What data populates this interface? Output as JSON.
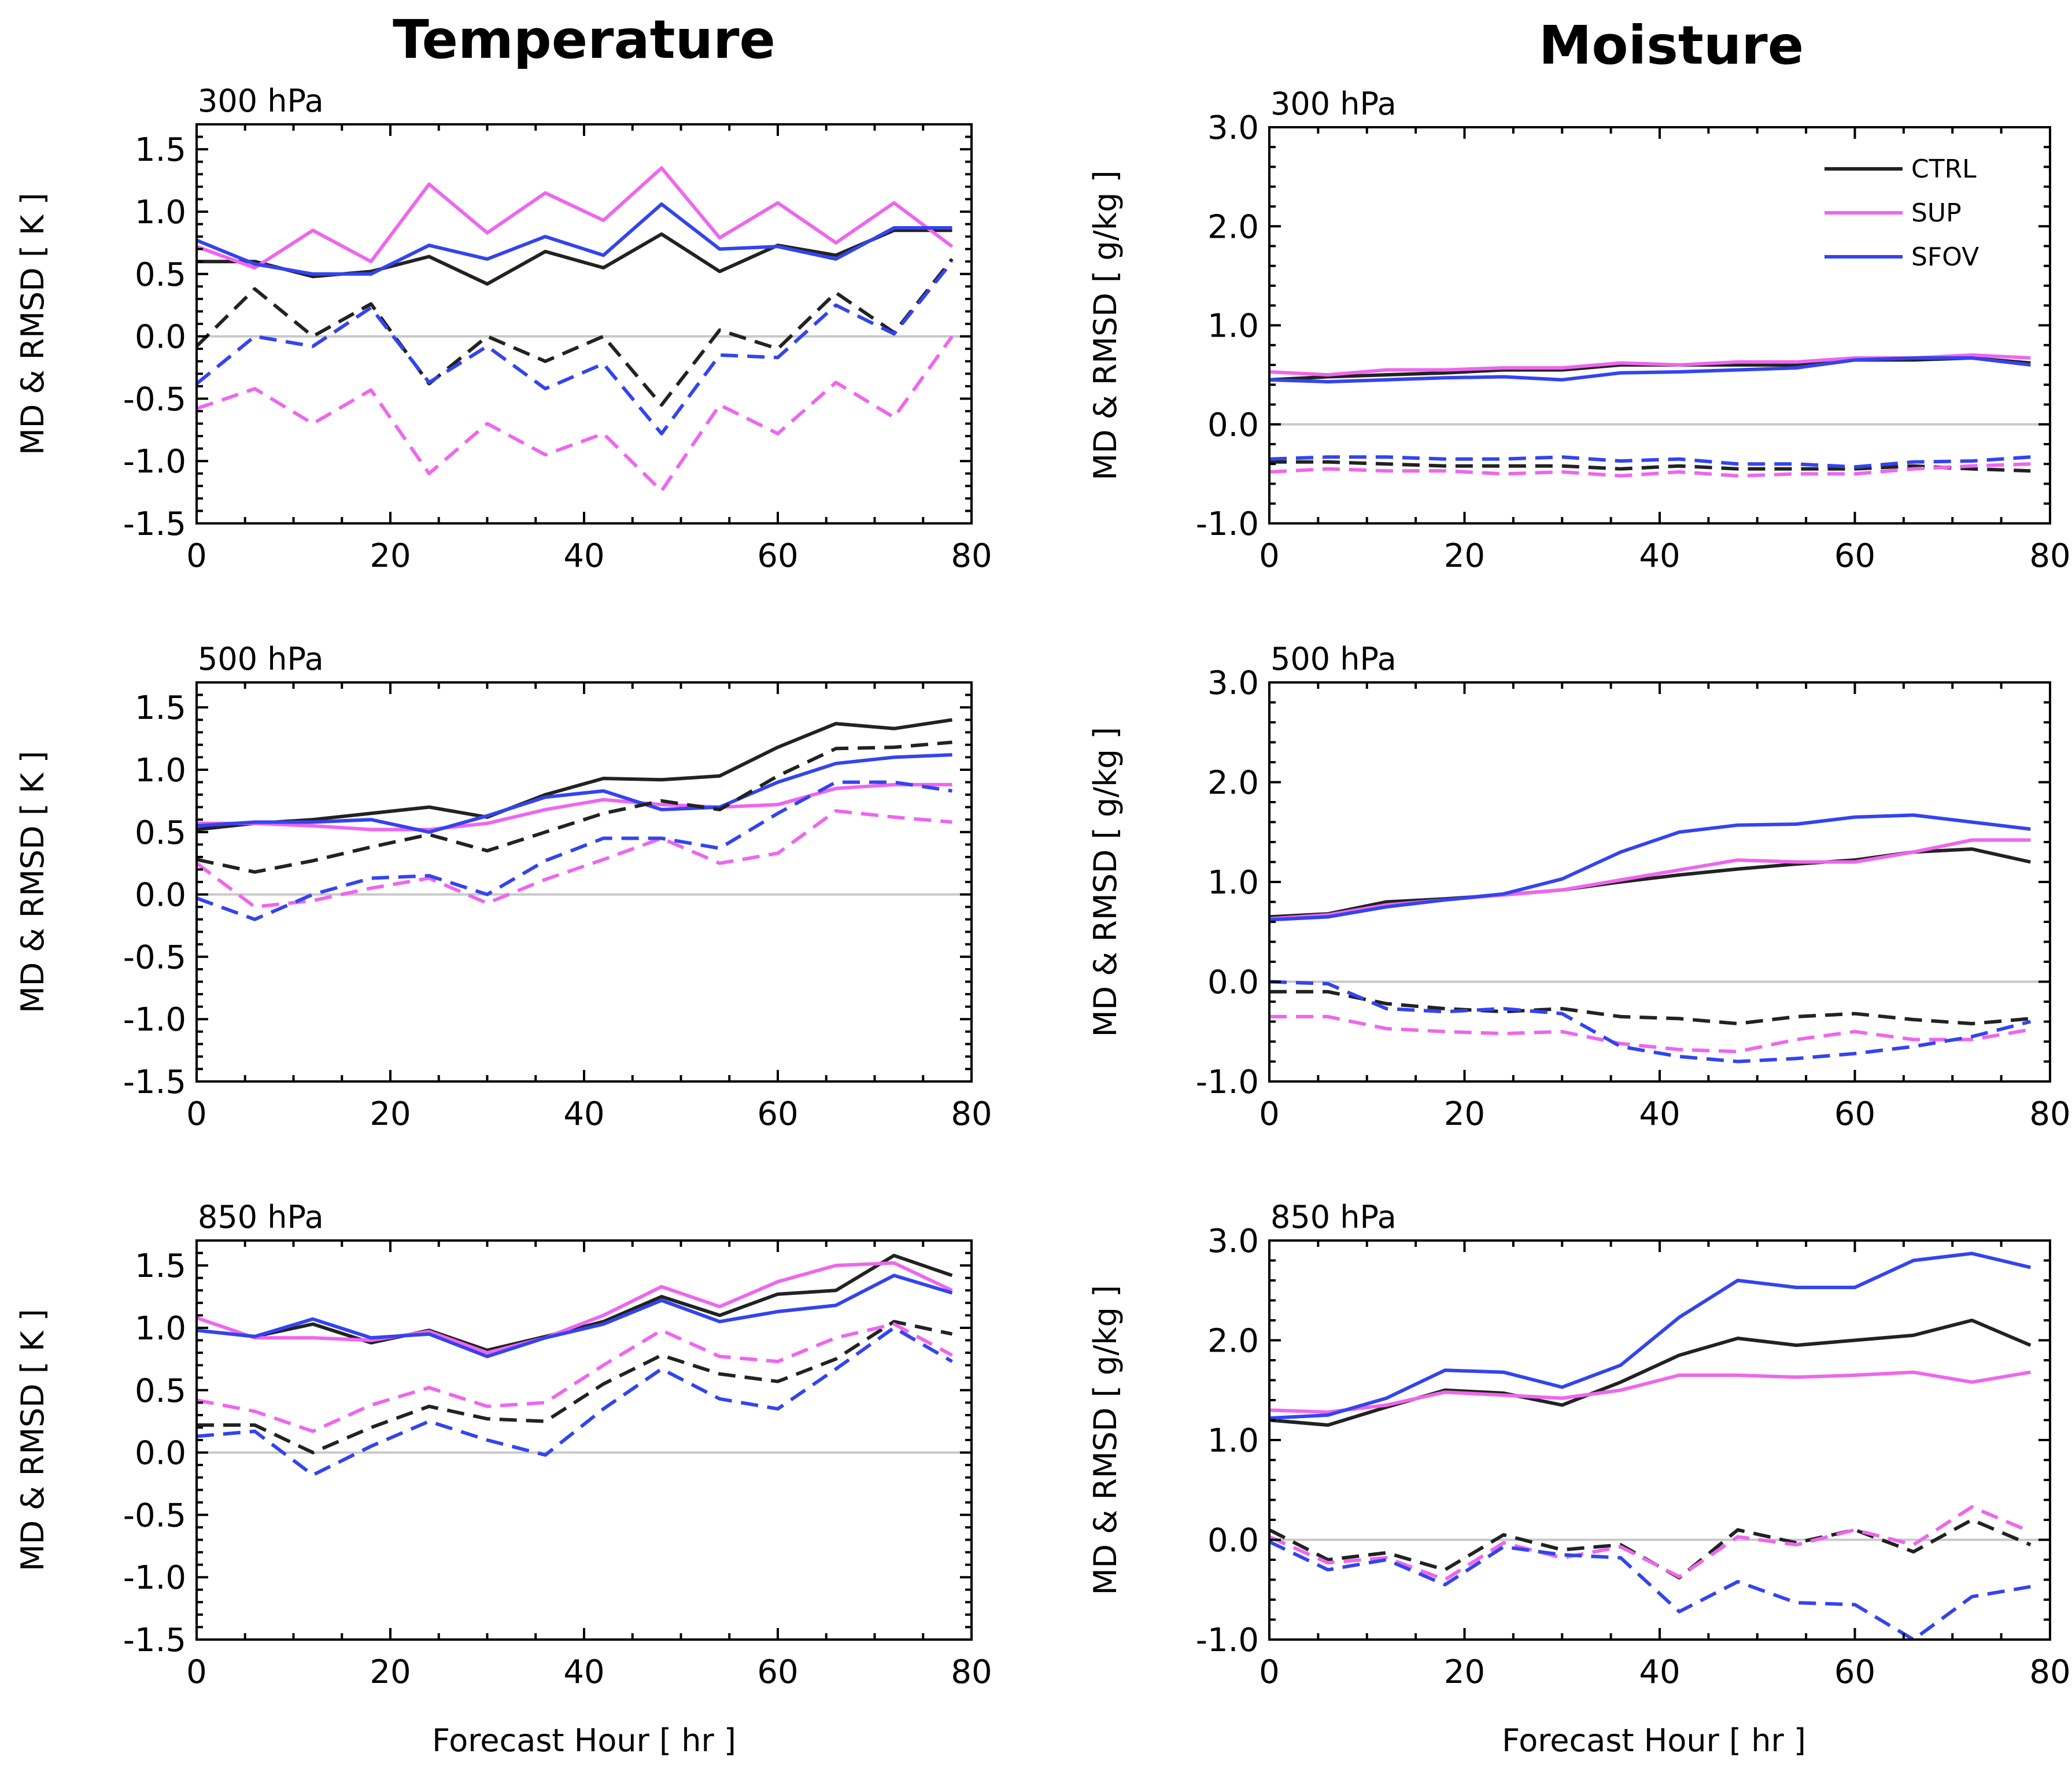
{
  "figure": {
    "columns": [
      "Temperature",
      "Moisture"
    ],
    "xlabel": "Forecast Hour [ hr ]"
  },
  "legend": [
    {
      "name": "CTRL",
      "color": "#222222"
    },
    {
      "name": "SUP",
      "color": "#ee66ee"
    },
    {
      "name": "SFOV",
      "color": "#3344ee"
    }
  ],
  "chart_data": [
    {
      "type": "line",
      "column": "Temperature",
      "level": "300 hPa",
      "ylabel": "MD & RMSD [ K ]",
      "xlim": [
        0,
        80
      ],
      "ylim": [
        -1.5,
        1.7
      ],
      "xticks": [
        0,
        20,
        40,
        60,
        80
      ],
      "yticks": [
        -1.5,
        -1.0,
        -0.5,
        0.0,
        0.5,
        1.0,
        1.5
      ],
      "ytick_labels": [
        "-1.5",
        "-1.0",
        "-0.5",
        "0.0",
        "0.5",
        "1.0",
        "1.5"
      ],
      "x": [
        0,
        6,
        12,
        18,
        24,
        30,
        36,
        42,
        48,
        54,
        60,
        66,
        72,
        78
      ],
      "series": [
        {
          "name": "CTRL",
          "metric": "RMSD",
          "style": "solid",
          "values": [
            0.6,
            0.6,
            0.48,
            0.52,
            0.64,
            0.42,
            0.68,
            0.55,
            0.82,
            0.52,
            0.73,
            0.65,
            0.85,
            0.85
          ]
        },
        {
          "name": "SUP",
          "metric": "RMSD",
          "style": "solid",
          "values": [
            0.72,
            0.55,
            0.85,
            0.6,
            1.22,
            0.83,
            1.15,
            0.93,
            1.35,
            0.79,
            1.07,
            0.75,
            1.07,
            0.72
          ]
        },
        {
          "name": "SFOV",
          "metric": "RMSD",
          "style": "solid",
          "values": [
            0.77,
            0.58,
            0.5,
            0.5,
            0.73,
            0.62,
            0.8,
            0.65,
            1.06,
            0.7,
            0.72,
            0.62,
            0.87,
            0.87
          ]
        },
        {
          "name": "CTRL",
          "metric": "MD",
          "style": "dashed",
          "values": [
            -0.08,
            0.38,
            0.0,
            0.26,
            -0.38,
            0.0,
            -0.2,
            0.0,
            -0.55,
            0.05,
            -0.1,
            0.35,
            0.03,
            0.62
          ]
        },
        {
          "name": "SUP",
          "metric": "MD",
          "style": "dashed",
          "values": [
            -0.58,
            -0.42,
            -0.7,
            -0.43,
            -1.1,
            -0.7,
            -0.95,
            -0.78,
            -1.24,
            -0.55,
            -0.78,
            -0.37,
            -0.65,
            0.0
          ]
        },
        {
          "name": "SFOV",
          "metric": "MD",
          "style": "dashed",
          "values": [
            -0.38,
            0.0,
            -0.08,
            0.23,
            -0.37,
            -0.08,
            -0.42,
            -0.22,
            -0.78,
            -0.15,
            -0.17,
            0.25,
            0.02,
            0.6
          ]
        }
      ]
    },
    {
      "type": "line",
      "column": "Moisture",
      "level": "300 hPa",
      "ylabel": "MD & RMSD [ g/kg ]",
      "xlim": [
        0,
        80
      ],
      "ylim": [
        -1.0,
        3.0
      ],
      "xticks": [
        0,
        20,
        40,
        60,
        80
      ],
      "yticks": [
        -1.0,
        0.0,
        1.0,
        2.0,
        3.0
      ],
      "ytick_labels": [
        "-1.0",
        "0.0",
        "1.0",
        "2.0",
        "3.0"
      ],
      "x": [
        0,
        6,
        12,
        18,
        24,
        30,
        36,
        42,
        48,
        54,
        60,
        66,
        72,
        78
      ],
      "series": [
        {
          "name": "CTRL",
          "metric": "RMSD",
          "style": "solid",
          "values": [
            0.45,
            0.48,
            0.5,
            0.52,
            0.55,
            0.55,
            0.6,
            0.6,
            0.6,
            0.6,
            0.65,
            0.65,
            0.67,
            0.62
          ]
        },
        {
          "name": "SUP",
          "metric": "RMSD",
          "style": "solid",
          "values": [
            0.53,
            0.5,
            0.55,
            0.55,
            0.57,
            0.57,
            0.62,
            0.6,
            0.63,
            0.63,
            0.67,
            0.67,
            0.7,
            0.67
          ]
        },
        {
          "name": "SFOV",
          "metric": "RMSD",
          "style": "solid",
          "values": [
            0.45,
            0.43,
            0.45,
            0.47,
            0.48,
            0.45,
            0.52,
            0.53,
            0.55,
            0.57,
            0.65,
            0.67,
            0.67,
            0.6
          ]
        },
        {
          "name": "CTRL",
          "metric": "MD",
          "style": "dashed",
          "values": [
            -0.38,
            -0.38,
            -0.4,
            -0.42,
            -0.42,
            -0.42,
            -0.45,
            -0.42,
            -0.45,
            -0.45,
            -0.45,
            -0.42,
            -0.45,
            -0.47
          ]
        },
        {
          "name": "SUP",
          "metric": "MD",
          "style": "dashed",
          "values": [
            -0.48,
            -0.45,
            -0.47,
            -0.47,
            -0.5,
            -0.48,
            -0.52,
            -0.48,
            -0.52,
            -0.5,
            -0.5,
            -0.45,
            -0.42,
            -0.4
          ]
        },
        {
          "name": "SFOV",
          "metric": "MD",
          "style": "dashed",
          "values": [
            -0.35,
            -0.33,
            -0.33,
            -0.35,
            -0.35,
            -0.33,
            -0.37,
            -0.35,
            -0.4,
            -0.4,
            -0.43,
            -0.38,
            -0.37,
            -0.33
          ]
        }
      ]
    },
    {
      "type": "line",
      "column": "Temperature",
      "level": "500 hPa",
      "ylabel": "MD & RMSD [ K ]",
      "xlim": [
        0,
        80
      ],
      "ylim": [
        -1.5,
        1.7
      ],
      "xticks": [
        0,
        20,
        40,
        60,
        80
      ],
      "yticks": [
        -1.5,
        -1.0,
        -0.5,
        0.0,
        0.5,
        1.0,
        1.5
      ],
      "ytick_labels": [
        "-1.5",
        "-1.0",
        "-0.5",
        "0.0",
        "0.5",
        "1.0",
        "1.5"
      ],
      "x": [
        0,
        6,
        12,
        18,
        24,
        30,
        36,
        42,
        48,
        54,
        60,
        66,
        72,
        78
      ],
      "series": [
        {
          "name": "CTRL",
          "metric": "RMSD",
          "style": "solid",
          "values": [
            0.52,
            0.57,
            0.6,
            0.65,
            0.7,
            0.62,
            0.8,
            0.93,
            0.92,
            0.95,
            1.18,
            1.37,
            1.33,
            1.4
          ]
        },
        {
          "name": "SUP",
          "metric": "RMSD",
          "style": "solid",
          "values": [
            0.57,
            0.57,
            0.55,
            0.52,
            0.52,
            0.57,
            0.68,
            0.76,
            0.72,
            0.7,
            0.72,
            0.85,
            0.88,
            0.88
          ]
        },
        {
          "name": "SFOV",
          "metric": "RMSD",
          "style": "solid",
          "values": [
            0.55,
            0.58,
            0.58,
            0.6,
            0.5,
            0.63,
            0.78,
            0.83,
            0.68,
            0.7,
            0.9,
            1.05,
            1.1,
            1.12
          ]
        },
        {
          "name": "CTRL",
          "metric": "MD",
          "style": "dashed",
          "values": [
            0.28,
            0.18,
            0.27,
            0.38,
            0.48,
            0.35,
            0.5,
            0.65,
            0.75,
            0.68,
            0.95,
            1.17,
            1.18,
            1.22
          ]
        },
        {
          "name": "SUP",
          "metric": "MD",
          "style": "dashed",
          "values": [
            0.25,
            -0.1,
            -0.05,
            0.05,
            0.13,
            -0.07,
            0.12,
            0.28,
            0.45,
            0.25,
            0.33,
            0.67,
            0.62,
            0.58
          ]
        },
        {
          "name": "SFOV",
          "metric": "MD",
          "style": "dashed",
          "values": [
            -0.03,
            -0.2,
            0.0,
            0.13,
            0.15,
            0.0,
            0.27,
            0.45,
            0.45,
            0.37,
            0.65,
            0.9,
            0.9,
            0.83
          ]
        }
      ]
    },
    {
      "type": "line",
      "column": "Moisture",
      "level": "500 hPa",
      "ylabel": "MD & RMSD [ g/kg ]",
      "xlim": [
        0,
        80
      ],
      "ylim": [
        -1.0,
        3.0
      ],
      "xticks": [
        0,
        20,
        40,
        60,
        80
      ],
      "yticks": [
        -1.0,
        0.0,
        1.0,
        2.0,
        3.0
      ],
      "ytick_labels": [
        "-1.0",
        "0.0",
        "1.0",
        "2.0",
        "3.0"
      ],
      "x": [
        0,
        6,
        12,
        18,
        24,
        30,
        36,
        42,
        48,
        54,
        60,
        66,
        72,
        78
      ],
      "series": [
        {
          "name": "CTRL",
          "metric": "RMSD",
          "style": "solid",
          "values": [
            0.65,
            0.68,
            0.8,
            0.83,
            0.87,
            0.92,
            1.0,
            1.07,
            1.13,
            1.18,
            1.22,
            1.3,
            1.33,
            1.2
          ]
        },
        {
          "name": "SUP",
          "metric": "RMSD",
          "style": "solid",
          "values": [
            0.63,
            0.67,
            0.77,
            0.82,
            0.87,
            0.92,
            1.02,
            1.12,
            1.22,
            1.2,
            1.2,
            1.3,
            1.42,
            1.42
          ]
        },
        {
          "name": "SFOV",
          "metric": "RMSD",
          "style": "solid",
          "values": [
            0.62,
            0.65,
            0.75,
            0.82,
            0.88,
            1.03,
            1.3,
            1.5,
            1.57,
            1.58,
            1.65,
            1.67,
            1.6,
            1.53
          ]
        },
        {
          "name": "CTRL",
          "metric": "MD",
          "style": "dashed",
          "values": [
            -0.1,
            -0.1,
            -0.22,
            -0.27,
            -0.3,
            -0.27,
            -0.35,
            -0.37,
            -0.42,
            -0.35,
            -0.32,
            -0.38,
            -0.42,
            -0.37
          ]
        },
        {
          "name": "SUP",
          "metric": "MD",
          "style": "dashed",
          "values": [
            -0.35,
            -0.35,
            -0.47,
            -0.5,
            -0.52,
            -0.5,
            -0.62,
            -0.68,
            -0.7,
            -0.58,
            -0.5,
            -0.58,
            -0.58,
            -0.48
          ]
        },
        {
          "name": "SFOV",
          "metric": "MD",
          "style": "dashed",
          "values": [
            0.0,
            -0.02,
            -0.27,
            -0.3,
            -0.27,
            -0.32,
            -0.65,
            -0.75,
            -0.8,
            -0.77,
            -0.72,
            -0.65,
            -0.55,
            -0.4
          ]
        }
      ]
    },
    {
      "type": "line",
      "column": "Temperature",
      "level": "850 hPa",
      "ylabel": "MD & RMSD [ K ]",
      "xlabel": "Forecast Hour [ hr ]",
      "xlim": [
        0,
        80
      ],
      "ylim": [
        -1.5,
        1.7
      ],
      "xticks": [
        0,
        20,
        40,
        60,
        80
      ],
      "yticks": [
        -1.5,
        -1.0,
        -0.5,
        0.0,
        0.5,
        1.0,
        1.5
      ],
      "ytick_labels": [
        "-1.5",
        "-1.0",
        "-0.5",
        "0.0",
        "0.5",
        "1.0",
        "1.5"
      ],
      "x": [
        0,
        6,
        12,
        18,
        24,
        30,
        36,
        42,
        48,
        54,
        60,
        66,
        72,
        78
      ],
      "series": [
        {
          "name": "CTRL",
          "metric": "RMSD",
          "style": "solid",
          "values": [
            0.98,
            0.93,
            1.03,
            0.88,
            0.98,
            0.82,
            0.93,
            1.05,
            1.25,
            1.1,
            1.27,
            1.3,
            1.58,
            1.42
          ]
        },
        {
          "name": "SUP",
          "metric": "RMSD",
          "style": "solid",
          "values": [
            1.08,
            0.92,
            0.92,
            0.9,
            0.97,
            0.8,
            0.92,
            1.1,
            1.33,
            1.17,
            1.37,
            1.5,
            1.52,
            1.3
          ]
        },
        {
          "name": "SFOV",
          "metric": "RMSD",
          "style": "solid",
          "values": [
            0.98,
            0.93,
            1.07,
            0.92,
            0.95,
            0.77,
            0.92,
            1.03,
            1.22,
            1.05,
            1.13,
            1.18,
            1.42,
            1.28
          ]
        },
        {
          "name": "CTRL",
          "metric": "MD",
          "style": "dashed",
          "values": [
            0.22,
            0.22,
            0.0,
            0.2,
            0.37,
            0.27,
            0.25,
            0.55,
            0.78,
            0.63,
            0.57,
            0.75,
            1.05,
            0.95
          ]
        },
        {
          "name": "SUP",
          "metric": "MD",
          "style": "dashed",
          "values": [
            0.42,
            0.33,
            0.17,
            0.38,
            0.52,
            0.37,
            0.4,
            0.7,
            0.98,
            0.77,
            0.73,
            0.92,
            1.03,
            0.78
          ]
        },
        {
          "name": "SFOV",
          "metric": "MD",
          "style": "dashed",
          "values": [
            0.13,
            0.17,
            -0.18,
            0.05,
            0.25,
            0.1,
            -0.02,
            0.35,
            0.67,
            0.43,
            0.35,
            0.67,
            1.0,
            0.73
          ]
        }
      ]
    },
    {
      "type": "line",
      "column": "Moisture",
      "level": "850 hPa",
      "ylabel": "MD & RMSD [ g/kg ]",
      "xlabel": "Forecast Hour [ hr ]",
      "xlim": [
        0,
        80
      ],
      "ylim": [
        -1.0,
        3.0
      ],
      "xticks": [
        0,
        20,
        40,
        60,
        80
      ],
      "yticks": [
        -1.0,
        0.0,
        1.0,
        2.0,
        3.0
      ],
      "ytick_labels": [
        "-1.0",
        "0.0",
        "1.0",
        "2.0",
        "3.0"
      ],
      "x": [
        0,
        6,
        12,
        18,
        24,
        30,
        36,
        42,
        48,
        54,
        60,
        66,
        72,
        78
      ],
      "series": [
        {
          "name": "CTRL",
          "metric": "RMSD",
          "style": "solid",
          "values": [
            1.2,
            1.15,
            1.33,
            1.5,
            1.47,
            1.35,
            1.58,
            1.85,
            2.02,
            1.95,
            2.0,
            2.05,
            2.2,
            1.95
          ]
        },
        {
          "name": "SUP",
          "metric": "RMSD",
          "style": "solid",
          "values": [
            1.3,
            1.28,
            1.35,
            1.48,
            1.45,
            1.42,
            1.5,
            1.65,
            1.65,
            1.63,
            1.65,
            1.68,
            1.58,
            1.68
          ]
        },
        {
          "name": "SFOV",
          "metric": "RMSD",
          "style": "solid",
          "values": [
            1.22,
            1.25,
            1.42,
            1.7,
            1.68,
            1.53,
            1.75,
            2.23,
            2.6,
            2.53,
            2.53,
            2.8,
            2.87,
            2.73
          ]
        },
        {
          "name": "CTRL",
          "metric": "MD",
          "style": "dashed",
          "values": [
            0.1,
            -0.2,
            -0.13,
            -0.3,
            0.05,
            -0.1,
            -0.05,
            -0.38,
            0.1,
            -0.03,
            0.1,
            -0.12,
            0.2,
            -0.05
          ]
        },
        {
          "name": "SUP",
          "metric": "MD",
          "style": "dashed",
          "values": [
            0.03,
            -0.23,
            -0.18,
            -0.4,
            -0.03,
            -0.18,
            -0.07,
            -0.37,
            0.03,
            -0.05,
            0.1,
            -0.05,
            0.33,
            0.08
          ]
        },
        {
          "name": "SFOV",
          "metric": "MD",
          "style": "dashed",
          "values": [
            -0.02,
            -0.3,
            -0.2,
            -0.45,
            -0.07,
            -0.15,
            -0.18,
            -0.72,
            -0.42,
            -0.63,
            -0.65,
            -1.0,
            -0.57,
            -0.47
          ]
        }
      ]
    }
  ]
}
